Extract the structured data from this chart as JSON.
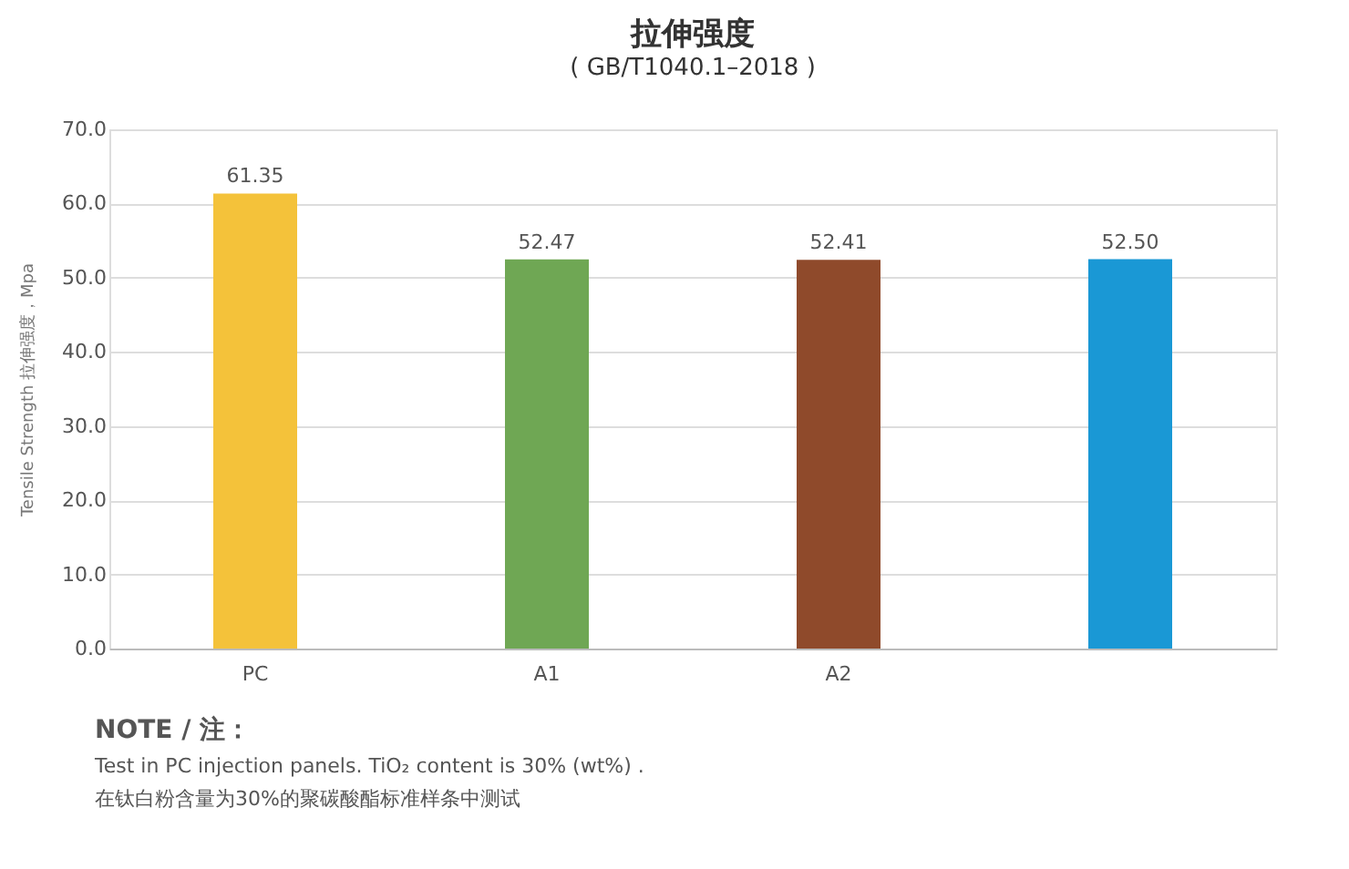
{
  "chart_data": {
    "type": "bar",
    "title": "拉伸强度",
    "subtitle": "( GB/T1040.1–2018 )",
    "ylabel": "Tensile Strength 拉伸强度，Mpa",
    "categories": [
      "PC",
      "A1",
      "A2",
      null
    ],
    "values": [
      61.35,
      52.47,
      52.41,
      52.5
    ],
    "colors": [
      "#f4c23a",
      "#6fa754",
      "#8f4a2b",
      "#1a98d5"
    ],
    "value_labels": [
      "61.35",
      "52.47",
      "52.41",
      "52.50"
    ],
    "ylim": [
      0,
      70
    ],
    "yticks": [
      {
        "value": 0,
        "label": "0.0"
      },
      {
        "value": 10,
        "label": "10.0"
      },
      {
        "value": 20,
        "label": "20.0"
      },
      {
        "value": 30,
        "label": "30.0"
      },
      {
        "value": 40,
        "label": "40.0"
      },
      {
        "value": 50,
        "label": "50.0"
      },
      {
        "value": 60,
        "label": "60.0"
      },
      {
        "value": 70,
        "label": "70.0"
      }
    ],
    "grid": "y",
    "annotations": [
      "NOTE / 注：",
      "Test in PC injection panels. TiO₂ content is 30% (wt%) .",
      "在钛白粉含量为30%的聚碳酸酯标准样条中测试"
    ]
  }
}
